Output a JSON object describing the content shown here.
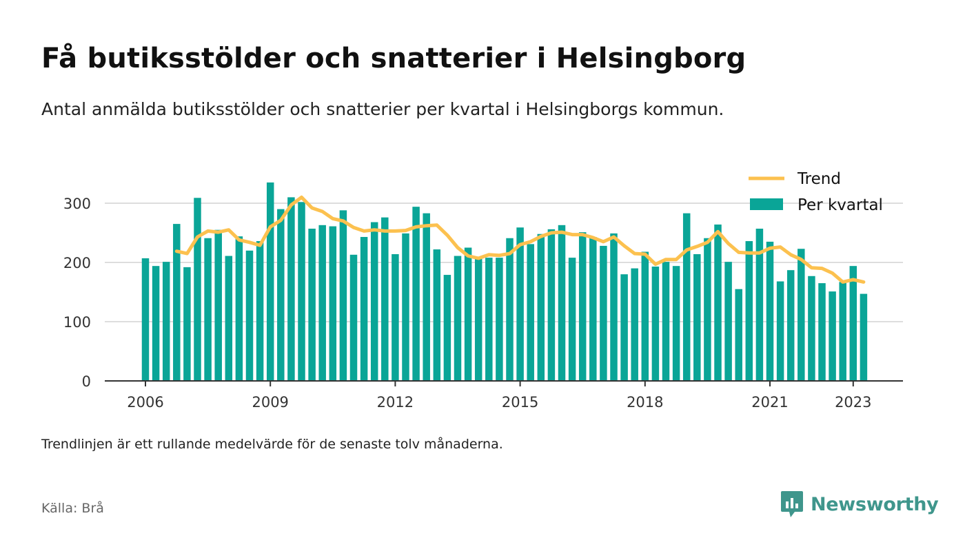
{
  "title": "Få butiksstölder och snatterier i Helsingborg",
  "subtitle": "Antal anmälda butiksstölder och snatterier per kvartal i Helsingborgs kommun.",
  "note": "Trendlinjen är ett rullande medelvärde för de senaste tolv månaderna.",
  "source": "Källa: Brå",
  "brand": {
    "name": "Newsworthy",
    "icon": "newsworthy-logo-icon",
    "color": "#3f968c"
  },
  "colors": {
    "bar": "#0aa597",
    "trend": "#fcc14f",
    "grid": "#dddddd",
    "axis": "#333333"
  },
  "chart_data": {
    "type": "bar",
    "x_start": "2006 Q1",
    "x_ticks": [
      "2006",
      "2009",
      "2012",
      "2015",
      "2018",
      "2021",
      "2023"
    ],
    "y_ticks": [
      "0",
      "100",
      "200",
      "300"
    ],
    "ylim": [
      0,
      360
    ],
    "grid": true,
    "legend_position": "top-right",
    "series": [
      {
        "name": "Per kvartal",
        "kind": "bar",
        "values": [
          207,
          194,
          201,
          265,
          192,
          309,
          241,
          255,
          211,
          244,
          220,
          236,
          335,
          290,
          310,
          302,
          257,
          263,
          261,
          288,
          213,
          243,
          268,
          276,
          214,
          249,
          294,
          283,
          222,
          179,
          211,
          225,
          207,
          208,
          208,
          241,
          259,
          231,
          248,
          256,
          263,
          208,
          251,
          243,
          228,
          249,
          180,
          190,
          218,
          193,
          201,
          194,
          283,
          214,
          241,
          264,
          201,
          155,
          236,
          257,
          235,
          168,
          187,
          223,
          177,
          165,
          151,
          167,
          194,
          147
        ]
      },
      {
        "name": "Trend",
        "kind": "line",
        "values": [
          null,
          null,
          null,
          219,
          215,
          243,
          253,
          251,
          255,
          238,
          234,
          229,
          260,
          271,
          297,
          310,
          292,
          286,
          274,
          270,
          259,
          253,
          255,
          253,
          253,
          254,
          260,
          262,
          263,
          246,
          225,
          211,
          207,
          213,
          212,
          215,
          230,
          235,
          244,
          250,
          251,
          247,
          247,
          242,
          235,
          243,
          228,
          215,
          214,
          197,
          205,
          205,
          221,
          227,
          234,
          252,
          232,
          217,
          216,
          216,
          224,
          226,
          213,
          205,
          191,
          190,
          182,
          167,
          171,
          167
        ]
      }
    ]
  }
}
